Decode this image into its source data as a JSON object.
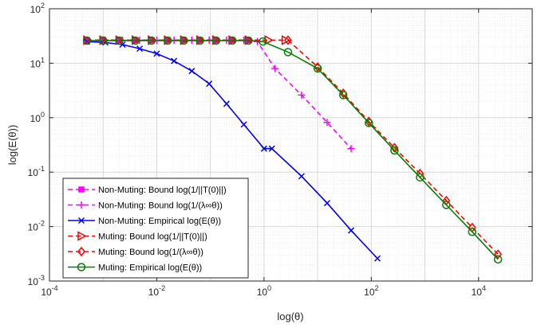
{
  "chart_data": {
    "type": "line",
    "xscale": "log",
    "yscale": "log",
    "xlim": [
      0.0001,
      100000
    ],
    "ylim": [
      0.001,
      100
    ],
    "xlabel": "log(θ)",
    "ylabel": "log(E(θ))",
    "grid": true,
    "legend_position": "bottom-left",
    "x_ticks": [
      {
        "value": 0.0001,
        "base": "10",
        "exp": "-4"
      },
      {
        "value": 0.01,
        "base": "10",
        "exp": "-2"
      },
      {
        "value": 1,
        "base": "10",
        "exp": "0"
      },
      {
        "value": 100,
        "base": "10",
        "exp": "2"
      },
      {
        "value": 10000,
        "base": "10",
        "exp": "4"
      }
    ],
    "y_ticks": [
      {
        "value": 0.001,
        "base": "10",
        "exp": "-3"
      },
      {
        "value": 0.01,
        "base": "10",
        "exp": "-2"
      },
      {
        "value": 0.1,
        "base": "10",
        "exp": "-1"
      },
      {
        "value": 1,
        "base": "10",
        "exp": "0"
      },
      {
        "value": 10,
        "base": "10",
        "exp": "1"
      },
      {
        "value": 100,
        "base": "10",
        "exp": "2"
      }
    ],
    "series": [
      {
        "name": "Non-Muting: Bound log(1/||T(0)||)",
        "color": "#ff00ff",
        "dash": "6,4",
        "marker": "square",
        "points": [
          [
            0.0005,
            26.5
          ],
          [
            0.001,
            26.5
          ],
          [
            0.002,
            26.5
          ],
          [
            0.004,
            26.5
          ],
          [
            0.008,
            26.5
          ],
          [
            0.016,
            26.5
          ],
          [
            0.032,
            26.5
          ],
          [
            0.064,
            26.5
          ],
          [
            0.128,
            26.5
          ],
          [
            0.256,
            26.5
          ],
          [
            0.512,
            26.5
          ]
        ]
      },
      {
        "name": "Non-Muting: Bound log(1/(λ∞θ))",
        "color": "#ff00ff",
        "dash": "6,4",
        "marker": "plus",
        "points": [
          [
            0.0005,
            26.5
          ],
          [
            0.0011,
            26.5
          ],
          [
            0.0023,
            26.5
          ],
          [
            0.0048,
            26.5
          ],
          [
            0.01,
            26.5
          ],
          [
            0.021,
            26.5
          ],
          [
            0.045,
            26.5
          ],
          [
            0.095,
            26.5
          ],
          [
            0.2,
            26.5
          ],
          [
            0.42,
            26.5
          ],
          [
            0.75,
            25
          ],
          [
            1.6,
            8
          ],
          [
            5,
            2.6
          ],
          [
            15,
            0.82
          ],
          [
            42,
            0.27
          ]
        ]
      },
      {
        "name": "Non-Muting: Empirical log(E(θ))",
        "color": "#0000ff",
        "dash": "",
        "marker": "x",
        "points": [
          [
            0.0005,
            25
          ],
          [
            0.0011,
            24
          ],
          [
            0.0023,
            22
          ],
          [
            0.0048,
            18.5
          ],
          [
            0.01,
            15
          ],
          [
            0.021,
            11
          ],
          [
            0.045,
            7.2
          ],
          [
            0.095,
            4.2
          ],
          [
            0.2,
            1.8
          ],
          [
            0.42,
            0.75
          ],
          [
            1.0,
            0.27
          ],
          [
            1.4,
            0.27
          ],
          [
            5,
            0.084
          ],
          [
            15,
            0.027
          ],
          [
            42,
            0.0085
          ],
          [
            130,
            0.0026
          ]
        ]
      },
      {
        "name": "Muting: Bound log(1/||T(0)||)",
        "color": "#ff0000",
        "dash": "6,4",
        "marker": "triangle-right",
        "points": [
          [
            0.0005,
            26.5
          ],
          [
            0.001,
            26.5
          ],
          [
            0.002,
            26.5
          ],
          [
            0.004,
            26.5
          ],
          [
            0.008,
            26.5
          ],
          [
            0.016,
            26.5
          ],
          [
            0.032,
            26.5
          ],
          [
            0.064,
            26.5
          ],
          [
            0.128,
            26.5
          ],
          [
            0.256,
            26.5
          ],
          [
            0.512,
            26.5
          ],
          [
            1.2,
            26.5
          ],
          [
            2.5,
            26.5
          ]
        ]
      },
      {
        "name": "Muting: Bound log(1/(λ∞θ))",
        "color": "#ff0000",
        "dash": "6,4",
        "marker": "diamond",
        "points": [
          [
            2.8,
            26.5
          ],
          [
            10,
            8.5
          ],
          [
            30,
            2.8
          ],
          [
            90,
            0.85
          ],
          [
            270,
            0.28
          ],
          [
            810,
            0.094
          ],
          [
            2500,
            0.03
          ],
          [
            7600,
            0.0096
          ],
          [
            23000,
            0.0031
          ]
        ]
      },
      {
        "name": "Muting: Empirical log(E(θ))",
        "color": "#008000",
        "dash": "",
        "marker": "circle",
        "points": [
          [
            0.0005,
            26
          ],
          [
            0.001,
            26
          ],
          [
            0.002,
            26
          ],
          [
            0.004,
            26
          ],
          [
            0.008,
            26
          ],
          [
            0.016,
            26
          ],
          [
            0.032,
            26
          ],
          [
            0.064,
            26
          ],
          [
            0.128,
            26
          ],
          [
            0.256,
            26
          ],
          [
            0.512,
            26
          ],
          [
            0.95,
            25
          ],
          [
            2.8,
            16
          ],
          [
            10,
            8
          ],
          [
            30,
            2.6
          ],
          [
            90,
            0.8
          ],
          [
            270,
            0.25
          ],
          [
            810,
            0.08
          ],
          [
            2500,
            0.025
          ],
          [
            7600,
            0.008
          ],
          [
            23000,
            0.0025
          ]
        ]
      }
    ]
  }
}
